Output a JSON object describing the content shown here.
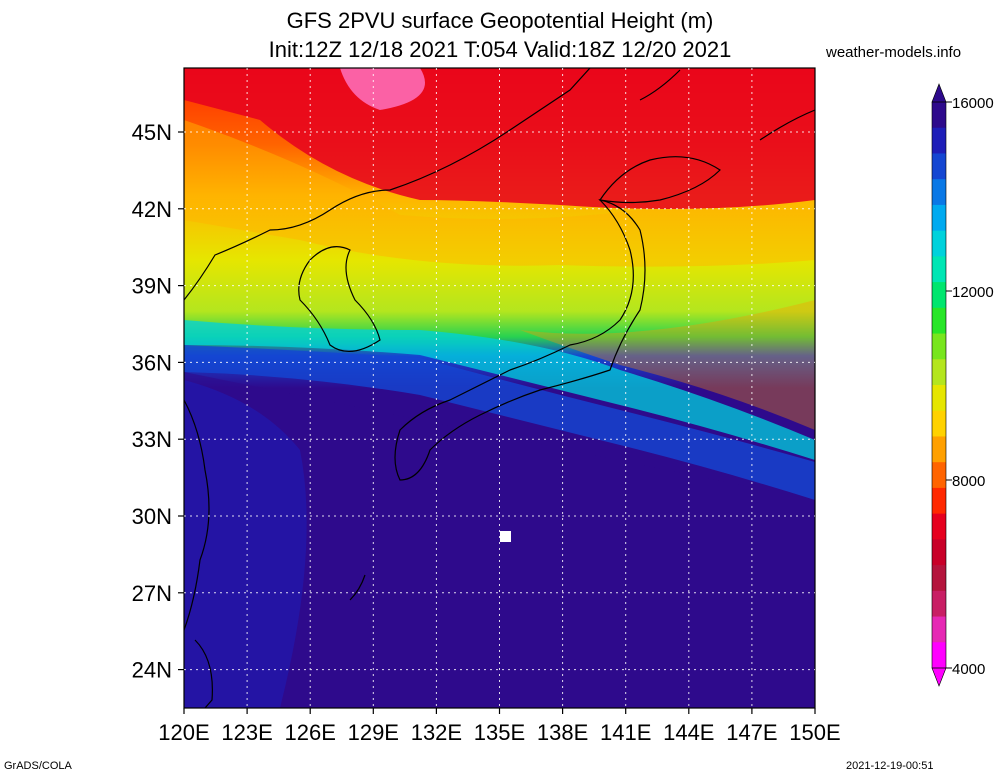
{
  "header": {
    "title_line1": "GFS 2PVU surface Geopotential Height (m)",
    "title_line2": "Init:12Z 12/18 2021 T:054 Valid:18Z 12/20 2021",
    "credit": "weather-models.info"
  },
  "map": {
    "lon_ticks": [
      "120E",
      "123E",
      "126E",
      "129E",
      "132E",
      "135E",
      "138E",
      "141E",
      "144E",
      "147E",
      "150E"
    ],
    "lat_ticks": [
      "24N",
      "27N",
      "30N",
      "33N",
      "36N",
      "39N",
      "42N",
      "45N"
    ],
    "lon_range": [
      120,
      150
    ],
    "lat_range": [
      22.5,
      47.5
    ],
    "grid": true
  },
  "colorbar": {
    "labels": [
      "16000",
      "12000",
      "8000",
      "4000"
    ],
    "colors": [
      "#2e0a8c",
      "#1e1eb8",
      "#1446d2",
      "#0a78e6",
      "#00aaf0",
      "#00d2dc",
      "#00e6b4",
      "#00e66e",
      "#28e628",
      "#78e61e",
      "#b4e61e",
      "#e6e600",
      "#ffd200",
      "#ffa000",
      "#ff6400",
      "#ff2800",
      "#e6001e",
      "#c80028",
      "#b4143c",
      "#c81e64",
      "#e628b4",
      "#ff00ff"
    ]
  },
  "footer": {
    "left": "GrADS/COLA",
    "right": "2021-12-19-00:51"
  }
}
